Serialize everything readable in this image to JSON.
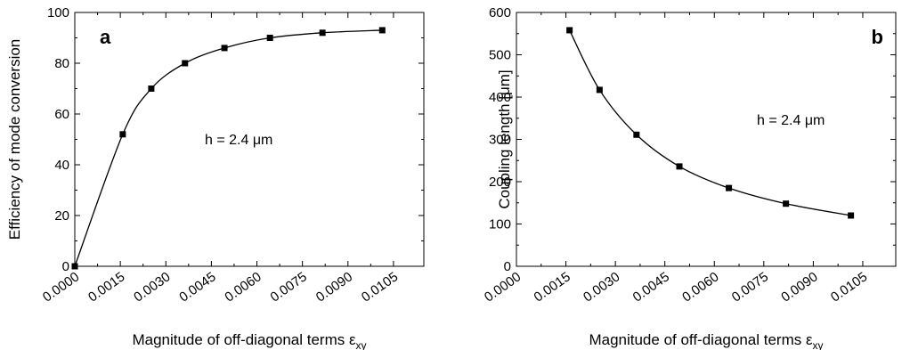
{
  "chart_data": [
    {
      "type": "line",
      "panel_label": "a",
      "annotation": "h = 2.4 μm",
      "xlabel": "Magnitude of off-diagonal terms ε",
      "xlabel_subscript": "xy",
      "ylabel": "Efficiency of mode conversion",
      "xlim": [
        0,
        0.0115
      ],
      "ylim": [
        0,
        100
      ],
      "x_ticks": [
        "0.0000",
        "0.0015",
        "0.0030",
        "0.0045",
        "0.0060",
        "0.0075",
        "0.0090",
        "0.0105"
      ],
      "y_ticks": [
        "0",
        "20",
        "40",
        "60",
        "80",
        "100"
      ],
      "grid": false,
      "series": [
        {
          "x": [
            0.0,
            0.00158,
            0.00252,
            0.00363,
            0.00493,
            0.00643,
            0.00816,
            0.01013
          ],
          "y": [
            0,
            52,
            70,
            80,
            86,
            90,
            92,
            93
          ]
        }
      ]
    },
    {
      "type": "line",
      "panel_label": "b",
      "annotation": "h = 2.4 μm",
      "xlabel": "Magnitude of off-diagonal terms ε",
      "xlabel_subscript": "xy",
      "ylabel": "Coupling length [μm]",
      "xlim": [
        0,
        0.0115
      ],
      "ylim": [
        0,
        600
      ],
      "x_ticks": [
        "0.0000",
        "0.0015",
        "0.0030",
        "0.0045",
        "0.0060",
        "0.0075",
        "0.0090",
        "0.0105"
      ],
      "y_ticks": [
        "0",
        "100",
        "200",
        "300",
        "400",
        "500",
        "600"
      ],
      "grid": false,
      "series": [
        {
          "x": [
            0.00161,
            0.00252,
            0.00364,
            0.00494,
            0.00644,
            0.00817,
            0.01014
          ],
          "y": [
            558,
            417,
            311,
            236,
            185,
            148,
            120
          ]
        }
      ]
    }
  ]
}
